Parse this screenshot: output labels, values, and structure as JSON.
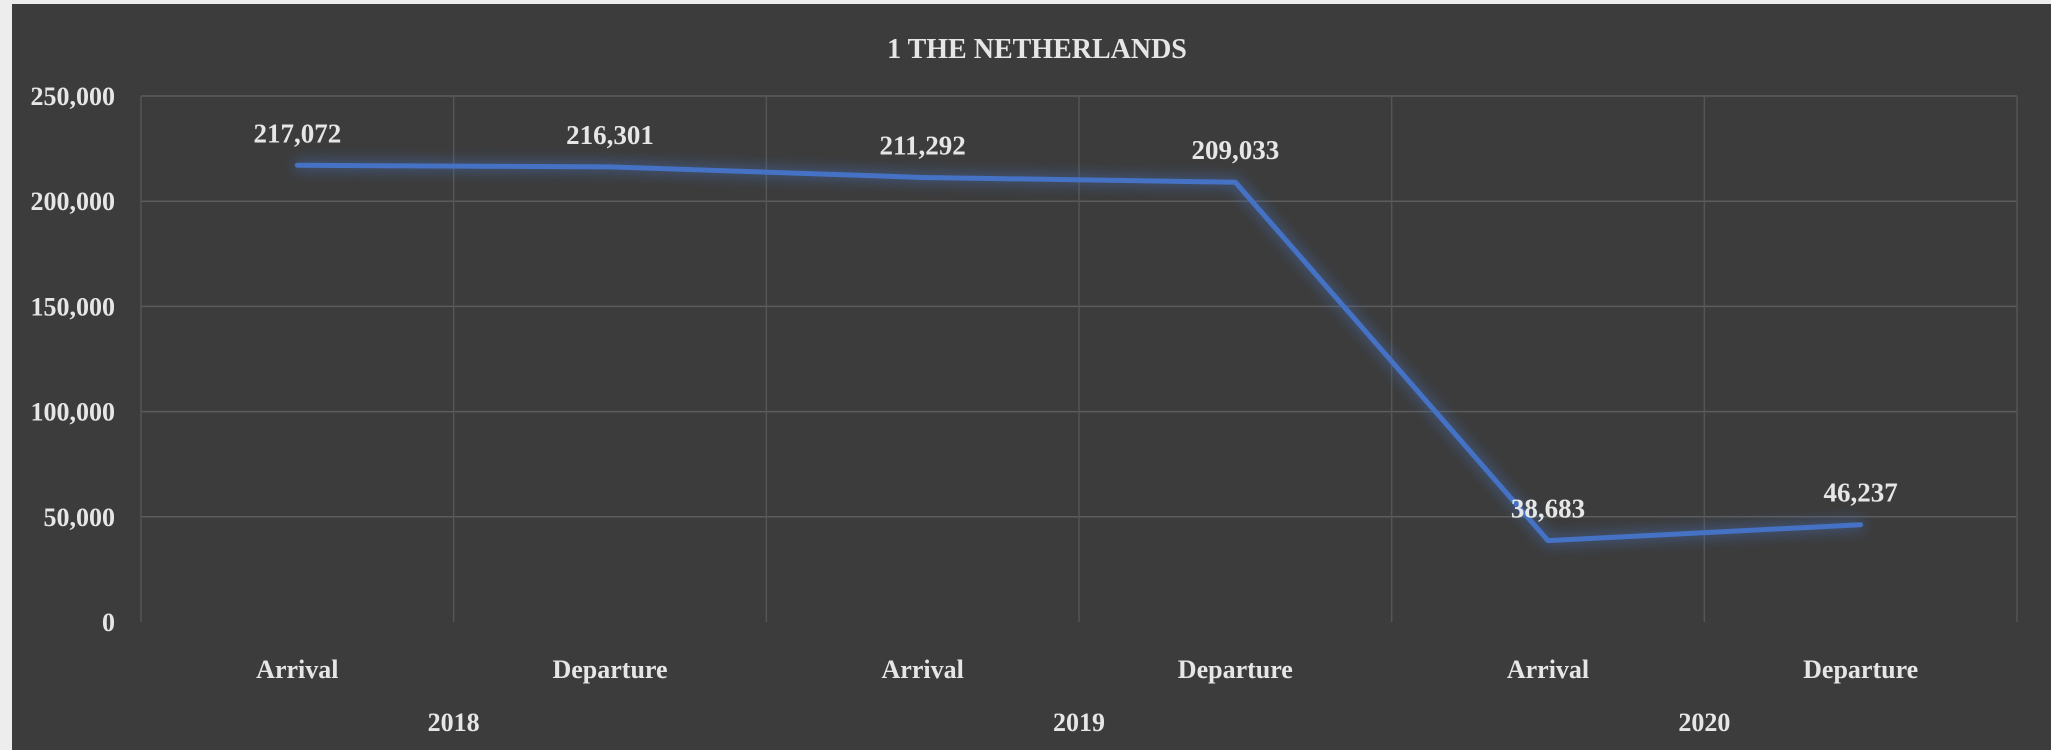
{
  "chart_data": {
    "type": "line",
    "title": "1 THE NETHERLANDS",
    "categories": [
      "Arrival",
      "Departure",
      "Arrival",
      "Departure",
      "Arrival",
      "Departure"
    ],
    "groups": [
      {
        "label": "2018",
        "span": 2
      },
      {
        "label": "2019",
        "span": 2
      },
      {
        "label": "2020",
        "span": 2
      }
    ],
    "series": [
      {
        "values": [
          217072,
          216301,
          211292,
          209033,
          38683,
          46237
        ],
        "color": "#4472c4"
      }
    ],
    "data_labels": [
      "217,072",
      "216,301",
      "211,292",
      "209,033",
      "38,683",
      "46,237"
    ],
    "y_ticks": [
      "0",
      "50,000",
      "100,000",
      "150,000",
      "200,000",
      "250,000"
    ],
    "ylim": [
      0,
      250000
    ],
    "grid": true,
    "legend": "none",
    "xlabel": "",
    "ylabel": ""
  }
}
